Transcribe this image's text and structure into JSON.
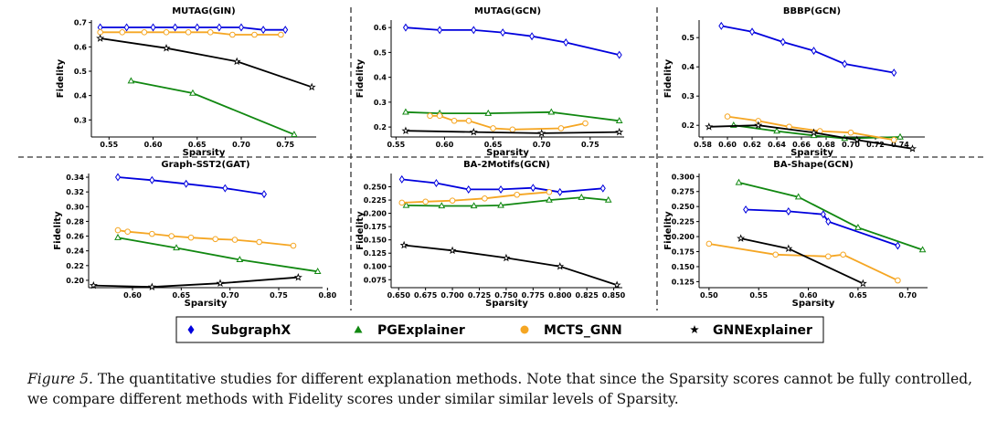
{
  "legend": {
    "items": [
      {
        "name": "SubgraphX",
        "color": "#0000dd",
        "marker": "diamond"
      },
      {
        "name": "PGExplainer",
        "color": "#118811",
        "marker": "triangle"
      },
      {
        "name": "MCTS_GNN",
        "color": "#f5a623",
        "marker": "circle"
      },
      {
        "name": "GNNExplainer",
        "color": "#000000",
        "marker": "star"
      }
    ]
  },
  "caption": {
    "label": "Figure 5.",
    "text": " The quantitative studies for different explanation methods. Note that since the Sparsity scores cannot be fully controlled, we compare different methods with Fidelity scores under similar similar levels of Sparsity."
  },
  "chart_data": [
    {
      "type": "line",
      "title": "MUTAG(GIN)",
      "xlabel": "Sparsity",
      "ylabel": "Fidelity",
      "xlim": [
        0.53,
        0.785
      ],
      "ylim": [
        0.23,
        0.71
      ],
      "xticks": [
        "0.55",
        "0.60",
        "0.65",
        "0.70",
        "0.75"
      ],
      "xtick_vals": [
        0.55,
        0.6,
        0.65,
        0.7,
        0.75
      ],
      "yticks": [
        "0.3",
        "0.4",
        "0.5",
        "0.6",
        "0.7"
      ],
      "ytick_vals": [
        0.3,
        0.4,
        0.5,
        0.6,
        0.7
      ],
      "series": [
        {
          "name": "SubgraphX",
          "x": [
            0.54,
            0.57,
            0.6,
            0.625,
            0.65,
            0.675,
            0.7,
            0.725,
            0.75
          ],
          "y": [
            0.68,
            0.68,
            0.68,
            0.68,
            0.68,
            0.68,
            0.68,
            0.67,
            0.67
          ]
        },
        {
          "name": "PGExplainer",
          "x": [
            0.575,
            0.645,
            0.76
          ],
          "y": [
            0.46,
            0.41,
            0.24
          ]
        },
        {
          "name": "MCTS_GNN",
          "x": [
            0.54,
            0.565,
            0.59,
            0.615,
            0.64,
            0.665,
            0.69,
            0.715,
            0.745
          ],
          "y": [
            0.66,
            0.66,
            0.66,
            0.66,
            0.66,
            0.66,
            0.65,
            0.65,
            0.65
          ]
        },
        {
          "name": "GNNExplainer",
          "x": [
            0.54,
            0.615,
            0.695,
            0.78
          ],
          "y": [
            0.635,
            0.595,
            0.54,
            0.435
          ]
        }
      ]
    },
    {
      "type": "line",
      "title": "MUTAG(GCN)",
      "xlabel": "Sparsity",
      "ylabel": "Fidelity",
      "xlim": [
        0.545,
        0.785
      ],
      "ylim": [
        0.16,
        0.63
      ],
      "xticks": [
        "0.55",
        "0.60",
        "0.65",
        "0.70",
        "0.75"
      ],
      "xtick_vals": [
        0.55,
        0.6,
        0.65,
        0.7,
        0.75
      ],
      "yticks": [
        "0.2",
        "0.3",
        "0.4",
        "0.5",
        "0.6"
      ],
      "ytick_vals": [
        0.2,
        0.3,
        0.4,
        0.5,
        0.6
      ],
      "series": [
        {
          "name": "SubgraphX",
          "x": [
            0.56,
            0.595,
            0.63,
            0.66,
            0.69,
            0.725,
            0.78
          ],
          "y": [
            0.6,
            0.59,
            0.59,
            0.58,
            0.565,
            0.54,
            0.49
          ]
        },
        {
          "name": "PGExplainer",
          "x": [
            0.56,
            0.595,
            0.645,
            0.71,
            0.78
          ],
          "y": [
            0.26,
            0.255,
            0.255,
            0.26,
            0.225
          ]
        },
        {
          "name": "MCTS_GNN",
          "x": [
            0.585,
            0.595,
            0.61,
            0.625,
            0.65,
            0.67,
            0.72,
            0.745
          ],
          "y": [
            0.245,
            0.245,
            0.225,
            0.225,
            0.195,
            0.19,
            0.195,
            0.215
          ]
        },
        {
          "name": "GNNExplainer",
          "x": [
            0.56,
            0.63,
            0.7,
            0.78
          ],
          "y": [
            0.185,
            0.18,
            0.175,
            0.18
          ]
        }
      ]
    },
    {
      "type": "line",
      "title": "BBBP(GCN)",
      "xlabel": "Sparsity",
      "ylabel": "Fidelity",
      "xlim": [
        0.577,
        0.76
      ],
      "ylim": [
        0.16,
        0.56
      ],
      "xticks": [
        "0.58",
        "0.60",
        "0.62",
        "0.64",
        "0.66",
        "0.68",
        "0.70",
        "0.72",
        "0.74"
      ],
      "xtick_vals": [
        0.58,
        0.6,
        0.62,
        0.64,
        0.66,
        0.68,
        0.7,
        0.72,
        0.74
      ],
      "yticks": [
        "0.2",
        "0.3",
        "0.4",
        "0.5"
      ],
      "ytick_vals": [
        0.2,
        0.3,
        0.4,
        0.5
      ],
      "series": [
        {
          "name": "SubgraphX",
          "x": [
            0.595,
            0.62,
            0.645,
            0.67,
            0.695,
            0.735
          ],
          "y": [
            0.54,
            0.52,
            0.485,
            0.455,
            0.41,
            0.38
          ]
        },
        {
          "name": "PGExplainer",
          "x": [
            0.605,
            0.64,
            0.67,
            0.695,
            0.74
          ],
          "y": [
            0.2,
            0.18,
            0.165,
            0.155,
            0.16
          ]
        },
        {
          "name": "MCTS_GNN",
          "x": [
            0.6,
            0.625,
            0.65,
            0.675,
            0.7,
            0.735
          ],
          "y": [
            0.23,
            0.215,
            0.195,
            0.18,
            0.175,
            0.15
          ]
        },
        {
          "name": "GNNExplainer",
          "x": [
            0.585,
            0.625,
            0.67,
            0.705,
            0.75
          ],
          "y": [
            0.195,
            0.2,
            0.175,
            0.15,
            0.12
          ]
        }
      ]
    },
    {
      "type": "line",
      "title": "Graph-SST2(GAT)",
      "xlabel": "Sparsity",
      "ylabel": "Fidelity",
      "xlim": [
        0.555,
        0.795
      ],
      "ylim": [
        0.19,
        0.345
      ],
      "xticks": [
        "0.60",
        "0.65",
        "0.70",
        "0.75",
        "0.80"
      ],
      "xtick_vals": [
        0.6,
        0.65,
        0.7,
        0.75,
        0.8
      ],
      "yticks": [
        "0.20",
        "0.22",
        "0.24",
        "0.26",
        "0.28",
        "0.30",
        "0.32",
        "0.34"
      ],
      "ytick_vals": [
        0.2,
        0.22,
        0.24,
        0.26,
        0.28,
        0.3,
        0.32,
        0.34
      ],
      "series": [
        {
          "name": "SubgraphX",
          "x": [
            0.585,
            0.62,
            0.655,
            0.695,
            0.735
          ],
          "y": [
            0.34,
            0.336,
            0.331,
            0.325,
            0.317
          ]
        },
        {
          "name": "PGExplainer",
          "x": [
            0.585,
            0.645,
            0.71,
            0.79
          ],
          "y": [
            0.258,
            0.244,
            0.228,
            0.212
          ]
        },
        {
          "name": "MCTS_GNN",
          "x": [
            0.585,
            0.595,
            0.62,
            0.64,
            0.66,
            0.685,
            0.705,
            0.73,
            0.765
          ],
          "y": [
            0.268,
            0.266,
            0.263,
            0.26,
            0.258,
            0.256,
            0.255,
            0.252,
            0.247
          ]
        },
        {
          "name": "GNNExplainer",
          "x": [
            0.56,
            0.62,
            0.69,
            0.77
          ],
          "y": [
            0.193,
            0.191,
            0.196,
            0.204
          ]
        }
      ]
    },
    {
      "type": "line",
      "title": "BA-2Motifs(GCN)",
      "xlabel": "Sparsity",
      "ylabel": "Fidelity",
      "xlim": [
        0.643,
        0.858
      ],
      "ylim": [
        0.06,
        0.275
      ],
      "xticks": [
        "0.650",
        "0.675",
        "0.700",
        "0.725",
        "0.750",
        "0.775",
        "0.800",
        "0.825",
        "0.850"
      ],
      "xtick_vals": [
        0.65,
        0.675,
        0.7,
        0.725,
        0.75,
        0.775,
        0.8,
        0.825,
        0.85
      ],
      "yticks": [
        "0.075",
        "0.100",
        "0.125",
        "0.150",
        "0.175",
        "0.200",
        "0.225",
        "0.250"
      ],
      "ytick_vals": [
        0.075,
        0.1,
        0.125,
        0.15,
        0.175,
        0.2,
        0.225,
        0.25
      ],
      "series": [
        {
          "name": "SubgraphX",
          "x": [
            0.653,
            0.685,
            0.715,
            0.745,
            0.775,
            0.8,
            0.84
          ],
          "y": [
            0.264,
            0.257,
            0.245,
            0.245,
            0.248,
            0.24,
            0.247
          ]
        },
        {
          "name": "PGExplainer",
          "x": [
            0.657,
            0.69,
            0.72,
            0.745,
            0.79,
            0.82,
            0.845
          ],
          "y": [
            0.215,
            0.214,
            0.214,
            0.215,
            0.225,
            0.23,
            0.225
          ]
        },
        {
          "name": "MCTS_GNN",
          "x": [
            0.653,
            0.675,
            0.7,
            0.73,
            0.76,
            0.79
          ],
          "y": [
            0.22,
            0.222,
            0.224,
            0.228,
            0.235,
            0.24
          ]
        },
        {
          "name": "GNNExplainer",
          "x": [
            0.655,
            0.7,
            0.75,
            0.8,
            0.853
          ],
          "y": [
            0.14,
            0.13,
            0.116,
            0.1,
            0.065
          ]
        }
      ]
    },
    {
      "type": "line",
      "title": "BA-Shape(GCN)",
      "xlabel": "Sparsity",
      "ylabel": "Fidelity",
      "xlim": [
        0.49,
        0.72
      ],
      "ylim": [
        0.115,
        0.305
      ],
      "xticks": [
        "0.50",
        "0.55",
        "0.60",
        "0.65",
        "0.70"
      ],
      "xtick_vals": [
        0.5,
        0.55,
        0.6,
        0.65,
        0.7
      ],
      "yticks": [
        "0.125",
        "0.150",
        "0.175",
        "0.200",
        "0.225",
        "0.250",
        "0.275",
        "0.300"
      ],
      "ytick_vals": [
        0.125,
        0.15,
        0.175,
        0.2,
        0.225,
        0.25,
        0.275,
        0.3
      ],
      "series": [
        {
          "name": "SubgraphX",
          "x": [
            0.537,
            0.58,
            0.615,
            0.62,
            0.69
          ],
          "y": [
            0.245,
            0.242,
            0.237,
            0.225,
            0.185
          ]
        },
        {
          "name": "PGExplainer",
          "x": [
            0.53,
            0.59,
            0.65,
            0.715
          ],
          "y": [
            0.29,
            0.266,
            0.215,
            0.178
          ]
        },
        {
          "name": "MCTS_GNN",
          "x": [
            0.5,
            0.567,
            0.62,
            0.635,
            0.69
          ],
          "y": [
            0.188,
            0.17,
            0.167,
            0.17,
            0.127
          ]
        },
        {
          "name": "GNNExplainer",
          "x": [
            0.532,
            0.58,
            0.655
          ],
          "y": [
            0.197,
            0.18,
            0.122
          ]
        }
      ]
    }
  ]
}
